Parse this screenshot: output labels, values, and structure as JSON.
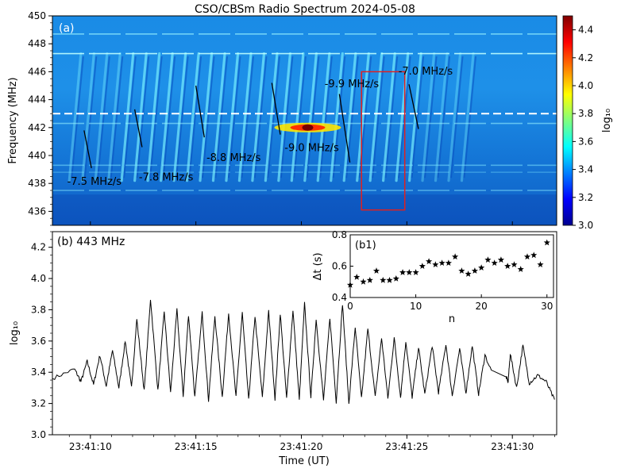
{
  "figure": {
    "title": "CSO/CBSm Radio Spectrum  2024-05-08"
  },
  "chart_data": [
    {
      "id": "panel-a",
      "type": "heatmap",
      "panel_label": "(a)",
      "ylabel": "Frequency (MHz)",
      "ylim": [
        435,
        450
      ],
      "y_ticks": [
        "436",
        "438",
        "440",
        "442",
        "444",
        "446",
        "448",
        "450"
      ],
      "x_time_range_s": [
        8.2,
        32.1
      ],
      "colorbar": {
        "label": "log₁₀",
        "range": [
          3.0,
          4.5
        ],
        "ticks": [
          "3.0",
          "3.2",
          "3.4",
          "3.6",
          "3.8",
          "4.0",
          "4.2",
          "4.4"
        ]
      },
      "dashed_line_frequency": 443,
      "drift_annotations": [
        {
          "label": "-7.5 MHz/s",
          "t": 8.9,
          "f": 437.9
        },
        {
          "label": "-7.8 MHz/s",
          "t": 12.3,
          "f": 438.2
        },
        {
          "label": "-8.8 MHz/s",
          "t": 15.5,
          "f": 439.6
        },
        {
          "label": "-9.0 MHz/s",
          "t": 19.2,
          "f": 440.3
        },
        {
          "label": "-9.9 MHz/s",
          "t": 21.1,
          "f": 444.9
        },
        {
          "label": "-7.0 MHz/s",
          "t": 24.6,
          "f": 445.8
        }
      ],
      "drift_lines": [
        {
          "t0": 9.7,
          "f0": 441.8,
          "t1": 10.05,
          "f1": 439.1
        },
        {
          "t0": 12.1,
          "f0": 443.3,
          "t1": 12.45,
          "f1": 440.6
        },
        {
          "t0": 15.0,
          "f0": 445.0,
          "t1": 15.4,
          "f1": 441.3
        },
        {
          "t0": 18.6,
          "f0": 445.2,
          "t1": 19.0,
          "f1": 441.5
        },
        {
          "t0": 21.8,
          "f0": 444.4,
          "t1": 22.3,
          "f1": 439.5
        },
        {
          "t0": 25.1,
          "f0": 445.1,
          "t1": 25.55,
          "f1": 441.9
        }
      ],
      "highlight_box": {
        "t0": 22.85,
        "t1": 24.9,
        "f0": 436.1,
        "f1": 446.0
      },
      "burst_count": 31,
      "burst_start_s": 9.2,
      "burst_spacing_s": 0.62,
      "hotspot": {
        "t": 20.3,
        "f": 442.0
      }
    },
    {
      "id": "panel-b",
      "type": "line",
      "panel_label": "(b) 443 MHz",
      "xlabel": "Time (UT)",
      "ylabel": "log₁₀",
      "ylim": [
        3.0,
        4.3
      ],
      "y_ticks": [
        "3.0",
        "3.2",
        "3.4",
        "3.6",
        "3.8",
        "4.0",
        "4.2"
      ],
      "x_ticks": [
        "23:41:10",
        "23:41:15",
        "23:41:20",
        "23:41:25",
        "23:41:30"
      ],
      "x_tick_seconds": [
        10,
        15,
        20,
        25,
        30
      ],
      "xlim_seconds": [
        8.2,
        32.1
      ],
      "peaks": [
        {
          "t": 9.25,
          "v": 3.42
        },
        {
          "t": 9.85,
          "v": 3.47
        },
        {
          "t": 10.45,
          "v": 3.51
        },
        {
          "t": 11.05,
          "v": 3.54
        },
        {
          "t": 11.65,
          "v": 3.6
        },
        {
          "t": 12.2,
          "v": 3.74
        },
        {
          "t": 12.85,
          "v": 3.87
        },
        {
          "t": 13.5,
          "v": 3.79
        },
        {
          "t": 14.1,
          "v": 3.8
        },
        {
          "t": 14.65,
          "v": 3.77
        },
        {
          "t": 15.3,
          "v": 3.78
        },
        {
          "t": 15.9,
          "v": 3.76
        },
        {
          "t": 16.55,
          "v": 3.78
        },
        {
          "t": 17.2,
          "v": 3.78
        },
        {
          "t": 17.8,
          "v": 3.76
        },
        {
          "t": 18.45,
          "v": 3.79
        },
        {
          "t": 19.0,
          "v": 3.78
        },
        {
          "t": 19.6,
          "v": 3.8
        },
        {
          "t": 20.15,
          "v": 3.84
        },
        {
          "t": 20.7,
          "v": 3.74
        },
        {
          "t": 21.35,
          "v": 3.75
        },
        {
          "t": 21.95,
          "v": 3.84
        },
        {
          "t": 22.55,
          "v": 3.69
        },
        {
          "t": 23.15,
          "v": 3.68
        },
        {
          "t": 23.8,
          "v": 3.62
        },
        {
          "t": 24.4,
          "v": 3.62
        },
        {
          "t": 24.95,
          "v": 3.6
        },
        {
          "t": 25.55,
          "v": 3.56
        },
        {
          "t": 26.2,
          "v": 3.57
        },
        {
          "t": 26.85,
          "v": 3.58
        },
        {
          "t": 27.5,
          "v": 3.55
        },
        {
          "t": 28.1,
          "v": 3.57
        },
        {
          "t": 28.7,
          "v": 3.51
        },
        {
          "t": 29.9,
          "v": 3.52
        },
        {
          "t": 30.5,
          "v": 3.57
        }
      ],
      "troughs": [
        {
          "t": 9.55,
          "v": 3.34
        },
        {
          "t": 10.15,
          "v": 3.32
        },
        {
          "t": 10.75,
          "v": 3.31
        },
        {
          "t": 11.35,
          "v": 3.3
        },
        {
          "t": 11.95,
          "v": 3.3
        },
        {
          "t": 12.55,
          "v": 3.28
        },
        {
          "t": 13.2,
          "v": 3.28
        },
        {
          "t": 13.8,
          "v": 3.27
        },
        {
          "t": 14.4,
          "v": 3.25
        },
        {
          "t": 14.95,
          "v": 3.24
        },
        {
          "t": 15.6,
          "v": 3.22
        },
        {
          "t": 16.25,
          "v": 3.24
        },
        {
          "t": 16.9,
          "v": 3.24
        },
        {
          "t": 17.5,
          "v": 3.22
        },
        {
          "t": 18.15,
          "v": 3.24
        },
        {
          "t": 18.75,
          "v": 3.23
        },
        {
          "t": 19.3,
          "v": 3.23
        },
        {
          "t": 19.9,
          "v": 3.22
        },
        {
          "t": 20.45,
          "v": 3.24
        },
        {
          "t": 21.05,
          "v": 3.22
        },
        {
          "t": 21.65,
          "v": 3.21
        },
        {
          "t": 22.25,
          "v": 3.2
        },
        {
          "t": 22.85,
          "v": 3.23
        },
        {
          "t": 23.5,
          "v": 3.24
        },
        {
          "t": 24.1,
          "v": 3.23
        },
        {
          "t": 24.7,
          "v": 3.24
        },
        {
          "t": 25.25,
          "v": 3.24
        },
        {
          "t": 25.85,
          "v": 3.26
        },
        {
          "t": 26.5,
          "v": 3.27
        },
        {
          "t": 27.15,
          "v": 3.25
        },
        {
          "t": 27.8,
          "v": 3.27
        },
        {
          "t": 28.4,
          "v": 3.26
        },
        {
          "t": 29.8,
          "v": 3.34
        },
        {
          "t": 30.2,
          "v": 3.3
        },
        {
          "t": 30.8,
          "v": 3.33
        }
      ],
      "segment_start": {
        "t": 8.2,
        "v": 3.36
      },
      "gap": {
        "t0": 29.0,
        "v0": 3.41,
        "t1": 29.7,
        "v1": 3.37
      },
      "tail": [
        {
          "t": 31.2,
          "v": 3.38
        },
        {
          "t": 31.6,
          "v": 3.34
        },
        {
          "t": 32.0,
          "v": 3.22
        }
      ]
    },
    {
      "id": "panel-b1",
      "type": "scatter",
      "panel_label": "(b1)",
      "xlabel": "n",
      "ylabel": "Δt (s)",
      "xlim": [
        0,
        31
      ],
      "ylim": [
        0.4,
        0.8
      ],
      "x_ticks": [
        "0",
        "10",
        "20",
        "30"
      ],
      "y_ticks": [
        "0.4",
        "0.6",
        "0.8"
      ],
      "marker": "star",
      "points": [
        [
          0,
          0.48
        ],
        [
          1,
          0.53
        ],
        [
          2,
          0.5
        ],
        [
          3,
          0.51
        ],
        [
          4,
          0.57
        ],
        [
          5,
          0.51
        ],
        [
          6,
          0.51
        ],
        [
          7,
          0.52
        ],
        [
          8,
          0.56
        ],
        [
          9,
          0.56
        ],
        [
          10,
          0.56
        ],
        [
          11,
          0.6
        ],
        [
          12,
          0.63
        ],
        [
          13,
          0.61
        ],
        [
          14,
          0.62
        ],
        [
          15,
          0.62
        ],
        [
          16,
          0.66
        ],
        [
          17,
          0.57
        ],
        [
          18,
          0.55
        ],
        [
          19,
          0.57
        ],
        [
          20,
          0.59
        ],
        [
          21,
          0.64
        ],
        [
          22,
          0.62
        ],
        [
          23,
          0.64
        ],
        [
          24,
          0.6
        ],
        [
          25,
          0.61
        ],
        [
          26,
          0.58
        ],
        [
          27,
          0.66
        ],
        [
          28,
          0.67
        ],
        [
          29,
          0.61
        ],
        [
          30,
          0.75
        ]
      ]
    }
  ]
}
